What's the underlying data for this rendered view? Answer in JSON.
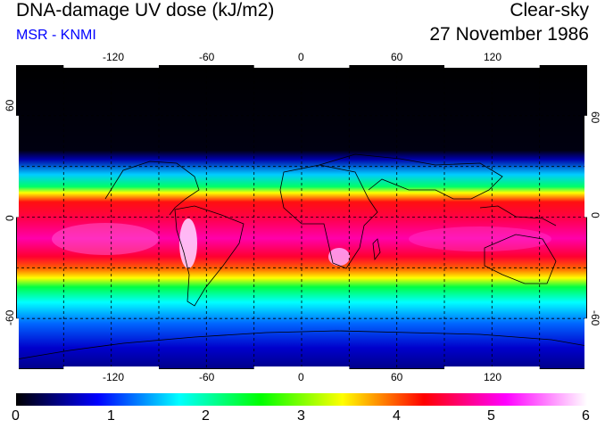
{
  "header": {
    "title": "DNA-damage UV dose (kJ/m2)",
    "subtitle": "MSR - KNMI",
    "mode": "Clear-sky",
    "date": "27 November 1986"
  },
  "map": {
    "lon_ticks": [
      "-120",
      "-60",
      "0",
      "60",
      "120"
    ],
    "lat_ticks": [
      "60",
      "0",
      "-60"
    ],
    "lon_range": [
      -180,
      180
    ],
    "lat_range": [
      -90,
      90
    ],
    "grid": "dashed every 30 degrees"
  },
  "colorbar": {
    "labels": [
      "0",
      "1",
      "2",
      "3",
      "4",
      "5",
      "6"
    ],
    "range": [
      0,
      6
    ],
    "colors": [
      "#000000",
      "#0000ff",
      "#00ffff",
      "#00ff00",
      "#ffff00",
      "#ff0000",
      "#ff00ff",
      "#ffffff"
    ]
  }
}
